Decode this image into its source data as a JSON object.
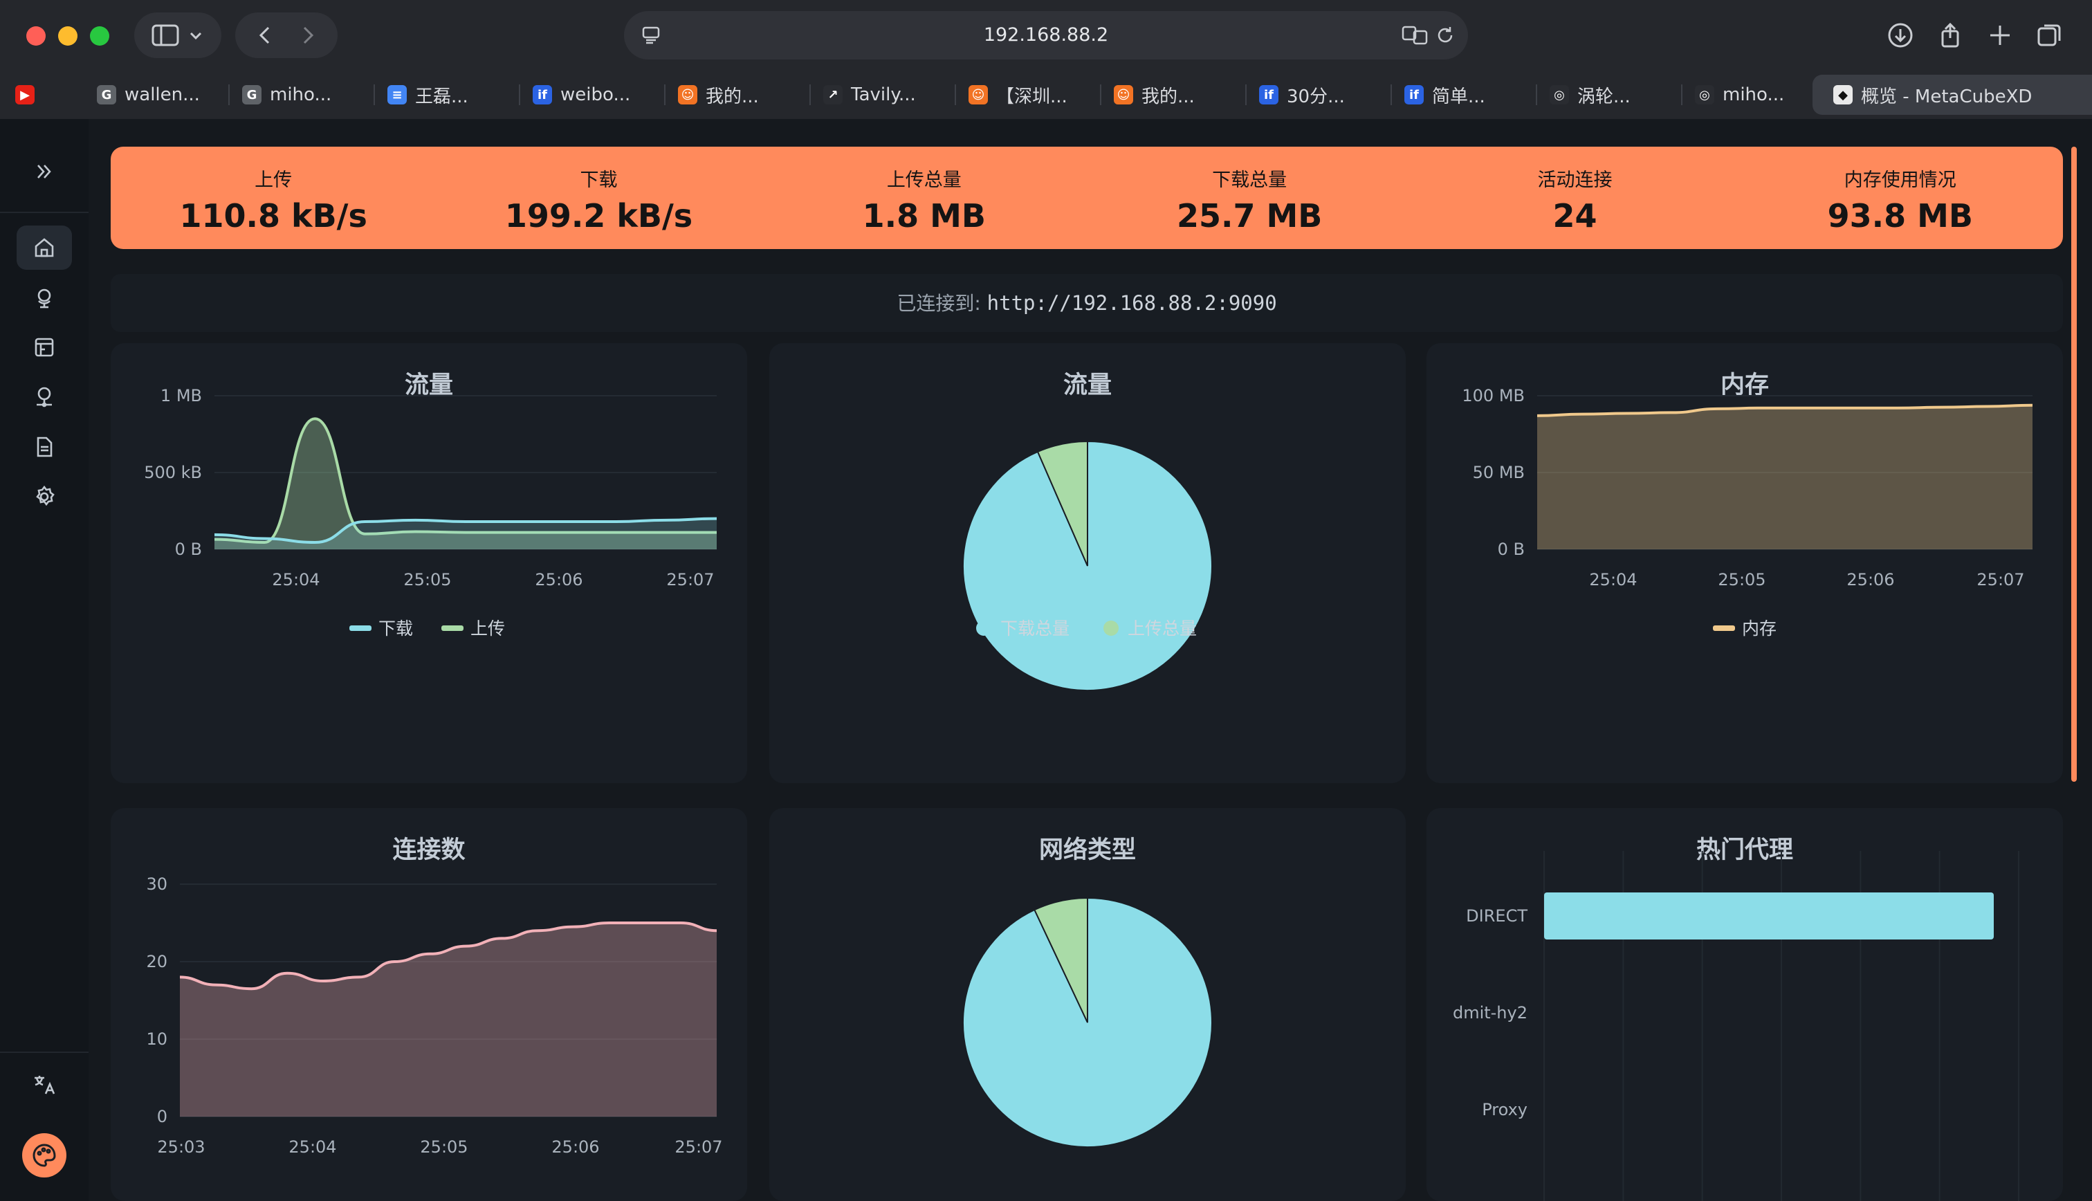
{
  "browser": {
    "url": "192.168.88.2",
    "tabs": [
      {
        "label": "wallen...",
        "fav": "G",
        "fav_color": "#5f6368"
      },
      {
        "label": "miho...",
        "fav": "G",
        "fav_color": "#5f6368"
      },
      {
        "label": "王磊...",
        "fav": "≡",
        "fav_color": "#4285f4"
      },
      {
        "label": "weibo...",
        "fav": "if",
        "fav_color": "#2b63e3"
      },
      {
        "label": "我的...",
        "fav": "☺",
        "fav_color": "#f27324"
      },
      {
        "label": "Tavily...",
        "fav": "↗",
        "fav_color": "#2a2c31"
      },
      {
        "label": "【深圳...",
        "fav": "☺",
        "fav_color": "#f27324"
      },
      {
        "label": "我的...",
        "fav": "☺",
        "fav_color": "#f27324"
      },
      {
        "label": "30分...",
        "fav": "if",
        "fav_color": "#2b63e3"
      },
      {
        "label": "简单...",
        "fav": "if",
        "fav_color": "#2b63e3"
      },
      {
        "label": "涡轮...",
        "fav": "◎",
        "fav_color": "#2a2c31"
      },
      {
        "label": "miho...",
        "fav": "◎",
        "fav_color": "#2a2c31"
      },
      {
        "label": "概览 - MetaCubeXD",
        "fav": "◆",
        "fav_color": "#e9e9e9",
        "active": true
      }
    ]
  },
  "stats": [
    {
      "label": "上传",
      "value": "110.8 kB/s"
    },
    {
      "label": "下载",
      "value": "199.2 kB/s"
    },
    {
      "label": "上传总量",
      "value": "1.8 MB"
    },
    {
      "label": "下载总量",
      "value": "25.7 MB"
    },
    {
      "label": "活动连接",
      "value": "24"
    },
    {
      "label": "内存使用情况",
      "value": "93.8 MB"
    }
  ],
  "connection": {
    "label": "已连接到:",
    "address": "http://192.168.88.2:9090"
  },
  "cards": {
    "traffic_title": "流量",
    "traffic_pie_title": "流量",
    "memory_title": "内存",
    "connections_title": "连接数",
    "network_title": "网络类型",
    "proxies_title": "热门代理"
  },
  "colors": {
    "accent": "#ff8a5c",
    "download": "#8cdde8",
    "upload": "#a9dba7",
    "memory": "#f0c98c",
    "connections": "#f2b1b8"
  },
  "chart_data": [
    {
      "type": "area",
      "title": "流量",
      "x": [
        "25:03.6",
        "25:03.8",
        "25:04",
        "25:04.2",
        "25:04.5",
        "25:05",
        "25:05.5",
        "25:06",
        "25:06.5",
        "25:07",
        "25:07.2"
      ],
      "x_ticks": [
        "25:04",
        "25:05",
        "25:06",
        "25:07"
      ],
      "y_ticks": [
        "0 B",
        "500 kB",
        "1 MB"
      ],
      "ylim": [
        0,
        1000
      ],
      "series": [
        {
          "name": "下载",
          "unit": "kB",
          "values": [
            95,
            70,
            45,
            180,
            190,
            180,
            180,
            180,
            180,
            190,
            200
          ]
        },
        {
          "name": "上传",
          "unit": "kB",
          "values": [
            65,
            45,
            850,
            100,
            115,
            110,
            110,
            110,
            110,
            110,
            110
          ]
        }
      ]
    },
    {
      "type": "pie",
      "title": "流量",
      "labels": [
        "下载总量",
        "上传总量"
      ],
      "values": [
        25.7,
        1.8
      ],
      "unit": "MB"
    },
    {
      "type": "area",
      "title": "内存",
      "x_ticks": [
        "25:04",
        "25:05",
        "25:06",
        "25:07"
      ],
      "y_ticks": [
        "0 B",
        "50 MB",
        "100 MB"
      ],
      "ylim": [
        0,
        100
      ],
      "series": [
        {
          "name": "内存",
          "unit": "MB",
          "values": [
            87,
            88,
            88.5,
            89,
            91.5,
            92,
            92,
            92,
            92,
            92.5,
            93,
            93.8
          ]
        }
      ]
    },
    {
      "type": "area",
      "title": "连接数",
      "x_ticks": [
        "25:03",
        "25:04",
        "25:05",
        "25:06",
        "25:07"
      ],
      "y_ticks": [
        "0",
        "10",
        "20",
        "30"
      ],
      "ylim": [
        0,
        30
      ],
      "series": [
        {
          "values": [
            18,
            17,
            16.5,
            18.5,
            17.5,
            18,
            20,
            21,
            22,
            23,
            24,
            24.5,
            25,
            25,
            25,
            24
          ]
        }
      ]
    },
    {
      "type": "pie",
      "title": "网络类型",
      "values": [
        93,
        7
      ]
    },
    {
      "type": "bar",
      "title": "热门代理",
      "orientation": "horizontal",
      "categories": [
        "DIRECT",
        "dmit-hy2",
        "Proxy"
      ],
      "values": [
        24,
        0,
        0
      ]
    }
  ]
}
